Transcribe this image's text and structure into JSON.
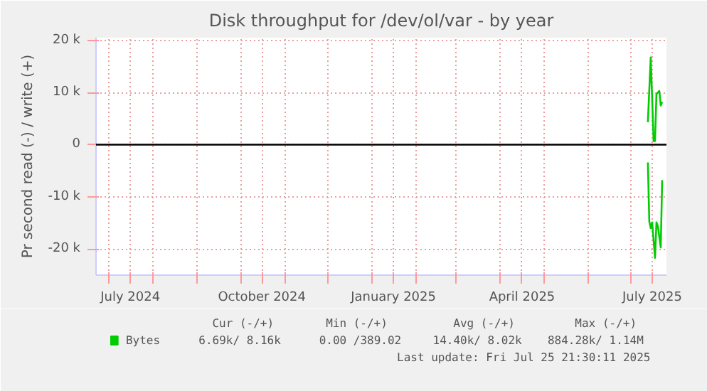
{
  "chart_data": {
    "type": "line",
    "title": "Disk throughput for /dev/ol/var - by year",
    "ylabel": "Pr second read (-) / write (+)",
    "xlim": [
      "2024-06-22",
      "2025-07-26"
    ],
    "ylim": [
      -25000,
      20500
    ],
    "xticks": [
      {
        "value": "2024-07-01",
        "label": null
      },
      {
        "value": "2024-07-16",
        "label": "July 2024"
      },
      {
        "value": "2024-08-01",
        "label": null
      },
      {
        "value": "2024-09-01",
        "label": null
      },
      {
        "value": "2024-10-01",
        "label": null
      },
      {
        "value": "2024-10-16",
        "label": "October 2024"
      },
      {
        "value": "2024-11-01",
        "label": null
      },
      {
        "value": "2024-12-01",
        "label": null
      },
      {
        "value": "2025-01-01",
        "label": null
      },
      {
        "value": "2025-01-16",
        "label": "January 2025"
      },
      {
        "value": "2025-02-01",
        "label": null
      },
      {
        "value": "2025-03-01",
        "label": null
      },
      {
        "value": "2025-04-01",
        "label": null
      },
      {
        "value": "2025-04-16",
        "label": "April 2025"
      },
      {
        "value": "2025-05-01",
        "label": null
      },
      {
        "value": "2025-06-01",
        "label": null
      },
      {
        "value": "2025-07-01",
        "label": null
      },
      {
        "value": "2025-07-16",
        "label": "July 2025"
      }
    ],
    "yticks": [
      {
        "value": -20000,
        "label": "-20 k"
      },
      {
        "value": -10000,
        "label": "-10 k"
      },
      0,
      {
        "value": 10000,
        "label": "10 k"
      },
      {
        "value": 20000,
        "label": "20 k"
      }
    ],
    "grid": true,
    "legend": "bottom left",
    "ref_lines": [
      {
        "axis": "y",
        "value": 0,
        "color": "#000000"
      }
    ],
    "series": [
      {
        "name": "Bytes",
        "color": "#00cc00",
        "x": [
          "2025-07-13",
          "2025-07-15",
          "2025-07-17",
          "2025-07-18",
          "2025-07-19",
          "2025-07-21",
          "2025-07-22",
          "2025-07-23"
        ],
        "values": [
          4300,
          16700,
          700,
          700,
          9700,
          10300,
          7500,
          8200
        ]
      },
      {
        "color": "#00cc00",
        "x": [
          "2025-07-13",
          "2025-07-14",
          "2025-07-15",
          "2025-07-16",
          "2025-07-18",
          "2025-07-19",
          "2025-07-20",
          "2025-07-22",
          "2025-07-23"
        ],
        "values": [
          -3400,
          -14700,
          -16000,
          -14900,
          -21700,
          -14900,
          -15600,
          -19700,
          -6800
        ]
      }
    ],
    "annotations": [
      "Cur (-/+)",
      "Min (-/+)",
      "Avg (-/+)",
      "Max (-/+)",
      "6.69k/  8.16k",
      "0.00 /389.02",
      "14.40k/  8.02k",
      "884.28k/  1.14M",
      "Last update: Fri Jul 25 21:30:11 2025"
    ]
  }
}
